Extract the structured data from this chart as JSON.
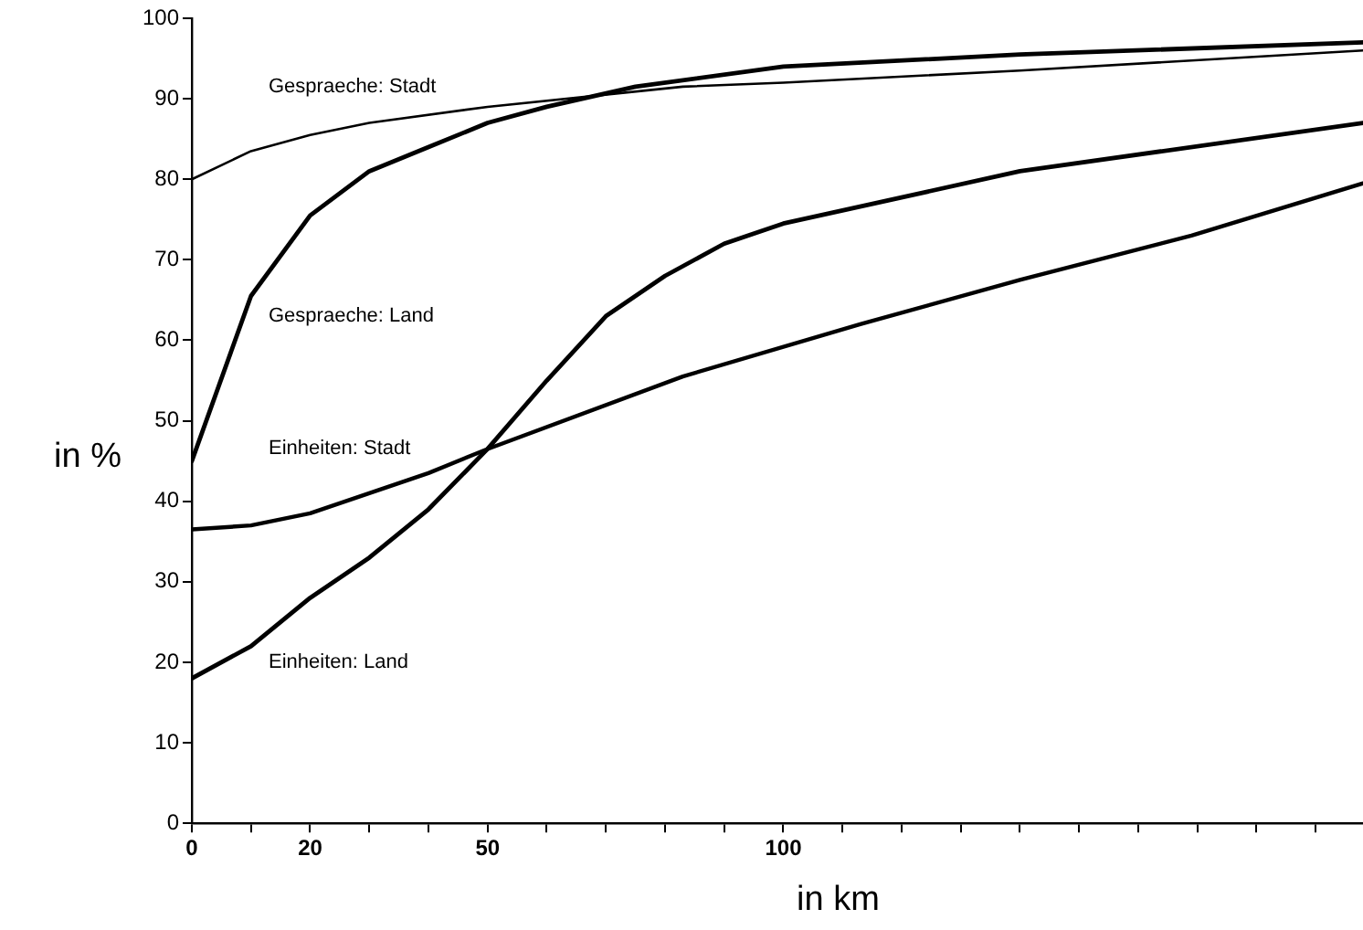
{
  "chart_data": {
    "type": "line",
    "xlabel": "in km",
    "ylabel": "in %",
    "xlim": [
      0,
      198
    ],
    "xticks": [
      0,
      {
        "value": 10,
        "label": null
      },
      20,
      {
        "value": 30,
        "label": null
      },
      {
        "value": 40,
        "label": null
      },
      50,
      {
        "value": 60,
        "label": null
      },
      {
        "value": 70,
        "label": null
      },
      {
        "value": 80,
        "label": null
      },
      {
        "value": 90,
        "label": null
      },
      100,
      {
        "value": 110,
        "label": null
      },
      {
        "value": 120,
        "label": null
      },
      {
        "value": 130,
        "label": null
      },
      {
        "value": 140,
        "label": null
      },
      {
        "value": 150,
        "label": null
      },
      {
        "value": 160,
        "label": null
      },
      {
        "value": 170,
        "label": null
      },
      {
        "value": 180,
        "label": null
      },
      {
        "value": 190,
        "label": null
      }
    ],
    "ylim": [
      0,
      100
    ],
    "yticks": [
      0,
      10,
      20,
      30,
      40,
      50,
      60,
      70,
      80,
      90,
      100
    ],
    "grid": false,
    "legend": false,
    "marker": "none",
    "line_style": "solid",
    "series": [
      {
        "name": "Gespraeche: Stadt",
        "color": "#000000",
        "x": [
          0,
          10,
          20,
          30,
          50,
          83,
          100,
          140,
          198
        ],
        "values": [
          80,
          83.5,
          85.5,
          87,
          89,
          91.5,
          92,
          93.5,
          96
        ]
      },
      {
        "name": "Gespraeche: Land",
        "color": "#000000",
        "x": [
          0,
          10,
          20,
          30,
          40,
          50,
          60,
          75,
          100,
          140,
          198
        ],
        "values": [
          45,
          65.5,
          75.5,
          81,
          84,
          87,
          89,
          91.5,
          94,
          95.5,
          97
        ]
      },
      {
        "name": "Einheiten: Stadt",
        "color": "#000000",
        "x": [
          0,
          10,
          20,
          30,
          40,
          50,
          83,
          113,
          140,
          169,
          198
        ],
        "values": [
          36.5,
          37,
          38.5,
          41,
          43.5,
          46.5,
          55.5,
          62,
          67.5,
          73,
          79.5
        ]
      },
      {
        "name": "Einheiten: Land",
        "color": "#000000",
        "x": [
          0,
          10,
          20,
          30,
          40,
          50,
          60,
          70,
          80,
          90,
          100,
          140,
          198
        ],
        "values": [
          18,
          22,
          28,
          33,
          39,
          46.5,
          55,
          63,
          68,
          72,
          74.5,
          81,
          87
        ]
      }
    ]
  }
}
